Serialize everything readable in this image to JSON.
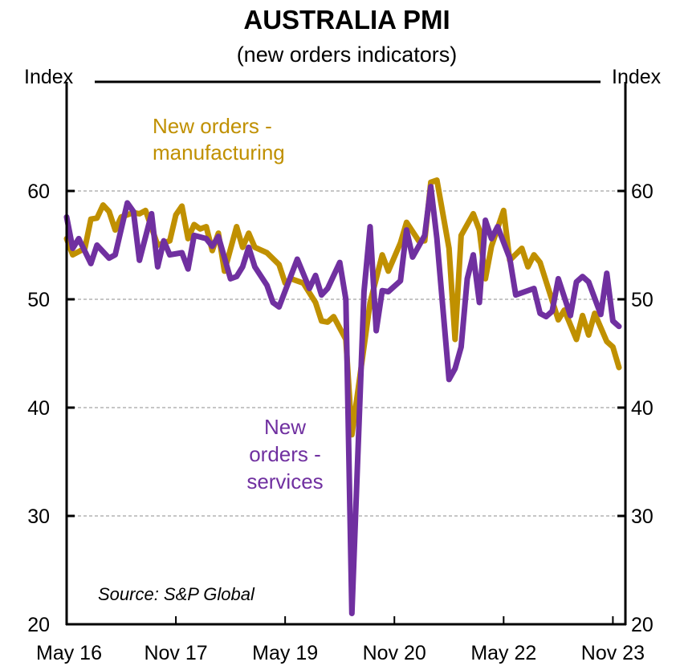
{
  "chart_data": {
    "type": "line",
    "title": "AUSTRALIA PMI",
    "subtitle": "(new orders indicators)",
    "ylabel_left": "Index",
    "ylabel_right": "Index",
    "ylim": [
      20,
      70
    ],
    "yticks": [
      "20",
      "30",
      "40",
      "50",
      "60"
    ],
    "ytick_values": [
      20,
      30,
      40,
      50,
      60
    ],
    "gridlines": [
      30,
      40,
      50,
      60
    ],
    "grid": "horizontal dashed",
    "xtick_labels": [
      "May 16",
      "Nov 17",
      "May 19",
      "Nov 20",
      "May 22",
      "Nov 23"
    ],
    "xtick_dates": [
      "2016-05",
      "2017-11",
      "2019-05",
      "2020-11",
      "2022-05",
      "2023-11"
    ],
    "source": "Source: S&P Global",
    "series": [
      {
        "name": "New orders - manufacturing",
        "label_lines": [
          "New orders -",
          "manufacturing"
        ],
        "color": "#C09000",
        "points": [
          [
            "2016-05",
            55.6
          ],
          [
            "2016-06",
            54.1
          ],
          [
            "2016-08",
            54.7
          ],
          [
            "2016-09",
            57.4
          ],
          [
            "2016-10",
            57.5
          ],
          [
            "2016-11",
            58.7
          ],
          [
            "2016-12",
            58.1
          ],
          [
            "2017-01",
            56.4
          ],
          [
            "2017-02",
            57.6
          ],
          [
            "2017-04",
            58.0
          ],
          [
            "2017-05",
            57.9
          ],
          [
            "2017-06",
            58.2
          ],
          [
            "2017-08",
            55.0
          ],
          [
            "2017-10",
            55.4
          ],
          [
            "2017-11",
            57.8
          ],
          [
            "2017-12",
            58.6
          ],
          [
            "2018-01",
            55.6
          ],
          [
            "2018-02",
            56.9
          ],
          [
            "2018-03",
            56.5
          ],
          [
            "2018-04",
            56.7
          ],
          [
            "2018-05",
            54.5
          ],
          [
            "2018-06",
            56.1
          ],
          [
            "2018-07",
            52.6
          ],
          [
            "2018-09",
            56.7
          ],
          [
            "2018-10",
            54.8
          ],
          [
            "2018-11",
            56.1
          ],
          [
            "2018-12",
            54.8
          ],
          [
            "2019-02",
            54.3
          ],
          [
            "2019-04",
            53.2
          ],
          [
            "2019-05",
            51.5
          ],
          [
            "2019-06",
            51.9
          ],
          [
            "2019-08",
            51.5
          ],
          [
            "2019-10",
            49.7
          ],
          [
            "2019-11",
            48.0
          ],
          [
            "2019-12",
            47.9
          ],
          [
            "2020-01",
            48.4
          ],
          [
            "2020-03",
            46.3
          ],
          [
            "2020-04",
            37.5
          ],
          [
            "2020-07",
            49.7
          ],
          [
            "2020-08",
            51.9
          ],
          [
            "2020-09",
            54.1
          ],
          [
            "2020-10",
            52.6
          ],
          [
            "2020-12",
            55.2
          ],
          [
            "2021-01",
            57.1
          ],
          [
            "2021-03",
            55.4
          ],
          [
            "2021-04",
            55.4
          ],
          [
            "2021-05",
            60.8
          ],
          [
            "2021-06",
            61.0
          ],
          [
            "2021-08",
            54.7
          ],
          [
            "2021-09",
            46.3
          ],
          [
            "2021-10",
            55.9
          ],
          [
            "2021-12",
            57.9
          ],
          [
            "2022-01",
            56.4
          ],
          [
            "2022-02",
            51.9
          ],
          [
            "2022-03",
            54.9
          ],
          [
            "2022-05",
            58.2
          ],
          [
            "2022-06",
            53.6
          ],
          [
            "2022-08",
            54.7
          ],
          [
            "2022-09",
            53.0
          ],
          [
            "2022-10",
            54.1
          ],
          [
            "2022-11",
            53.4
          ],
          [
            "2023-02",
            48.1
          ],
          [
            "2023-03",
            49.0
          ],
          [
            "2023-05",
            46.3
          ],
          [
            "2023-06",
            48.5
          ],
          [
            "2023-07",
            46.7
          ],
          [
            "2023-08",
            48.7
          ],
          [
            "2023-10",
            46.1
          ],
          [
            "2023-11",
            45.6
          ],
          [
            "2023-12",
            43.7
          ]
        ]
      },
      {
        "name": "New orders - services",
        "label_lines": [
          "New",
          "orders -",
          "services"
        ],
        "color": "#7030A0",
        "points": [
          [
            "2016-05",
            57.6
          ],
          [
            "2016-06",
            54.7
          ],
          [
            "2016-07",
            55.6
          ],
          [
            "2016-09",
            53.3
          ],
          [
            "2016-10",
            55.0
          ],
          [
            "2016-12",
            53.8
          ],
          [
            "2017-01",
            54.1
          ],
          [
            "2017-03",
            58.9
          ],
          [
            "2017-04",
            58.1
          ],
          [
            "2017-05",
            53.6
          ],
          [
            "2017-07",
            57.9
          ],
          [
            "2017-08",
            53.0
          ],
          [
            "2017-09",
            55.4
          ],
          [
            "2017-10",
            54.1
          ],
          [
            "2017-12",
            54.3
          ],
          [
            "2018-01",
            52.8
          ],
          [
            "2018-02",
            55.9
          ],
          [
            "2018-04",
            55.6
          ],
          [
            "2018-05",
            54.9
          ],
          [
            "2018-06",
            55.8
          ],
          [
            "2018-08",
            51.9
          ],
          [
            "2018-09",
            52.1
          ],
          [
            "2018-10",
            53.0
          ],
          [
            "2018-11",
            54.8
          ],
          [
            "2018-12",
            53.0
          ],
          [
            "2019-02",
            51.3
          ],
          [
            "2019-03",
            49.7
          ],
          [
            "2019-04",
            49.3
          ],
          [
            "2019-07",
            53.7
          ],
          [
            "2019-09",
            51.0
          ],
          [
            "2019-10",
            52.2
          ],
          [
            "2019-11",
            50.4
          ],
          [
            "2019-12",
            51.0
          ],
          [
            "2020-02",
            53.4
          ],
          [
            "2020-03",
            50.0
          ],
          [
            "2020-04",
            21.0
          ],
          [
            "2020-06",
            50.7
          ],
          [
            "2020-07",
            56.7
          ],
          [
            "2020-08",
            47.1
          ],
          [
            "2020-09",
            50.8
          ],
          [
            "2020-10",
            50.7
          ],
          [
            "2020-12",
            51.7
          ],
          [
            "2021-01",
            56.4
          ],
          [
            "2021-02",
            53.9
          ],
          [
            "2021-04",
            55.9
          ],
          [
            "2021-05",
            60.4
          ],
          [
            "2021-06",
            55.6
          ],
          [
            "2021-08",
            42.6
          ],
          [
            "2021-09",
            43.6
          ],
          [
            "2021-10",
            45.6
          ],
          [
            "2021-11",
            51.9
          ],
          [
            "2021-12",
            54.1
          ],
          [
            "2022-01",
            49.7
          ],
          [
            "2022-02",
            57.3
          ],
          [
            "2022-03",
            55.6
          ],
          [
            "2022-04",
            56.7
          ],
          [
            "2022-06",
            53.8
          ],
          [
            "2022-07",
            50.4
          ],
          [
            "2022-10",
            51.0
          ],
          [
            "2022-11",
            48.7
          ],
          [
            "2022-12",
            48.4
          ],
          [
            "2023-01",
            48.9
          ],
          [
            "2023-02",
            51.9
          ],
          [
            "2023-04",
            48.5
          ],
          [
            "2023-05",
            51.6
          ],
          [
            "2023-06",
            52.1
          ],
          [
            "2023-07",
            51.6
          ],
          [
            "2023-09",
            48.6
          ],
          [
            "2023-10",
            52.4
          ],
          [
            "2023-11",
            48.0
          ],
          [
            "2023-12",
            47.5
          ]
        ]
      }
    ]
  }
}
